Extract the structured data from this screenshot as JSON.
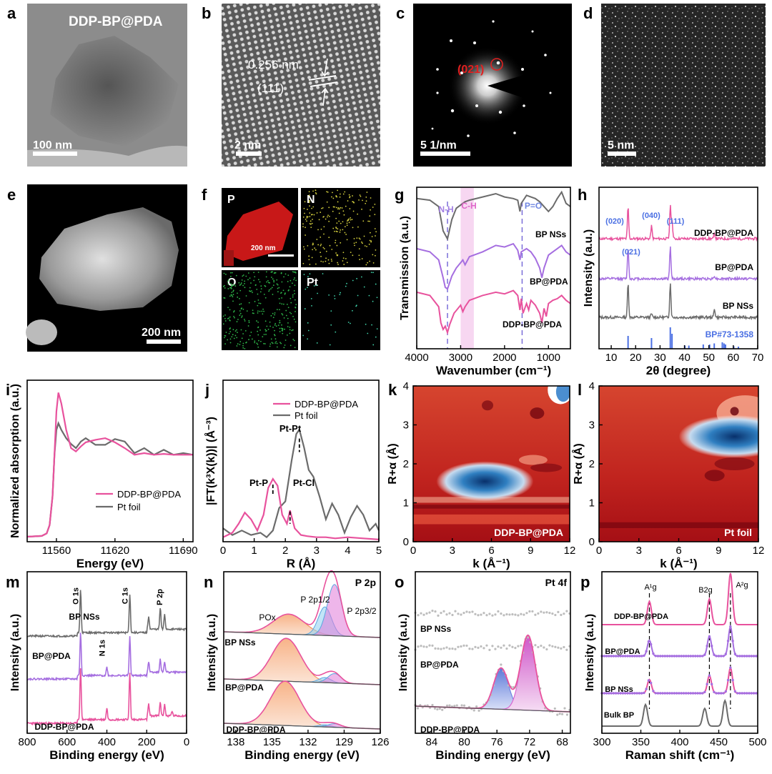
{
  "figure": {
    "panel_letters": [
      "a",
      "b",
      "c",
      "d",
      "e",
      "f",
      "g",
      "h",
      "i",
      "j",
      "k",
      "l",
      "m",
      "n",
      "o",
      "p"
    ]
  },
  "micro": {
    "a": {
      "title": "DDP-BP@PDA",
      "scale": "100 nm"
    },
    "b": {
      "spacing": "0.256 nm",
      "plane": "(111)",
      "scale": "2 nm"
    },
    "c": {
      "spot": "(021)",
      "scale": "5 1/nm"
    },
    "d": {
      "scale": "5 nm"
    },
    "e": {
      "scale": "200 nm"
    },
    "f": {
      "maps": [
        "P",
        "N",
        "O",
        "Pt"
      ],
      "scale": "200 nm"
    }
  },
  "colors": {
    "ddp": "#e8529d",
    "bp_pda": "#a56ee0",
    "bp_ns": "#6b6b6b",
    "pt_foil": "#6b6b6b",
    "ref": "#4a6fe3",
    "poxfill": "#f4a77a",
    "p2p12": "#8fd0f0",
    "p2p32": "#e07ad8",
    "pt_blue": "#6f86e0",
    "pt_pink": "#d867d0"
  },
  "chart_data": [
    {
      "id": "g",
      "type": "line",
      "xlabel": "Wavenumber (cm⁻¹)",
      "ylabel": "Transmission (a.u.)",
      "xlim": [
        4000,
        500
      ],
      "xticks": [
        4000,
        3000,
        2000,
        1000
      ],
      "annotations": [
        "N-H",
        "C-H",
        "P=O"
      ],
      "series": [
        {
          "name": "BP NSs",
          "x": [
            4000,
            3700,
            3500,
            3400,
            3300,
            3200,
            3100,
            2900,
            2800,
            2500,
            2200,
            2000,
            1800,
            1700,
            1650,
            1620,
            1500,
            1400,
            1300,
            1200,
            1100,
            1000,
            900,
            800,
            700,
            600,
            500
          ],
          "y": [
            0.93,
            0.92,
            0.88,
            0.73,
            0.68,
            0.8,
            0.87,
            0.91,
            0.92,
            0.94,
            0.96,
            0.94,
            0.93,
            0.92,
            0.85,
            0.9,
            0.95,
            0.94,
            0.93,
            0.91,
            0.88,
            0.85,
            0.88,
            0.93,
            0.97,
            0.9,
            0.88
          ]
        },
        {
          "name": "BP@PDA",
          "x": [
            4000,
            3700,
            3500,
            3400,
            3350,
            3300,
            3200,
            3100,
            2950,
            2900,
            2800,
            2500,
            2200,
            2000,
            1800,
            1700,
            1650,
            1620,
            1500,
            1400,
            1300,
            1200,
            1150,
            1100,
            1000,
            900,
            800,
            700,
            600,
            500
          ],
          "y": [
            0.62,
            0.6,
            0.55,
            0.44,
            0.38,
            0.37,
            0.45,
            0.5,
            0.55,
            0.52,
            0.57,
            0.6,
            0.64,
            0.63,
            0.65,
            0.61,
            0.55,
            0.6,
            0.62,
            0.6,
            0.56,
            0.5,
            0.44,
            0.5,
            0.58,
            0.6,
            0.62,
            0.64,
            0.6,
            0.58
          ]
        },
        {
          "name": "DDP-BP@PDA",
          "x": [
            4000,
            3700,
            3500,
            3450,
            3400,
            3350,
            3300,
            3250,
            3150,
            3000,
            2950,
            2900,
            2800,
            2500,
            2200,
            2000,
            1800,
            1700,
            1650,
            1620,
            1580,
            1500,
            1450,
            1400,
            1300,
            1200,
            1150,
            1100,
            1050,
            1000,
            900,
            800,
            700,
            600,
            500
          ],
          "y": [
            0.35,
            0.33,
            0.26,
            0.16,
            0.12,
            0.14,
            0.1,
            0.15,
            0.22,
            0.27,
            0.23,
            0.26,
            0.3,
            0.33,
            0.35,
            0.34,
            0.36,
            0.33,
            0.24,
            0.31,
            0.22,
            0.28,
            0.24,
            0.3,
            0.27,
            0.22,
            0.16,
            0.25,
            0.2,
            0.28,
            0.3,
            0.31,
            0.33,
            0.3,
            0.28
          ]
        }
      ]
    },
    {
      "id": "h",
      "type": "line",
      "xlabel": "2θ (degree)",
      "ylabel": "Intensity (a.u.)",
      "xlim": [
        5,
        70
      ],
      "xticks": [
        10,
        20,
        30,
        40,
        50,
        60,
        70
      ],
      "peak_labels": [
        "(020)",
        "(021)",
        "(040)",
        "(111)"
      ],
      "reference": {
        "name": "BP#73-1358",
        "x": [
          16.9,
          26.5,
          34.2,
          34.9,
          40.2,
          41.8,
          47.7,
          50.3,
          52.2,
          55.5,
          56.2,
          56.8,
          60.2,
          62.1
        ],
        "h": [
          0.6,
          0.5,
          1.0,
          0.7,
          0.15,
          0.15,
          0.2,
          0.2,
          0.25,
          0.3,
          0.25,
          0.2,
          0.12,
          0.1
        ]
      },
      "series": [
        {
          "name": "DDP-BP@PDA",
          "peaks": [
            [
              16.9,
              1.0
            ],
            [
              26.5,
              0.4
            ],
            [
              34.2,
              1.0
            ],
            [
              34.9,
              0.6
            ],
            [
              52.3,
              0.15
            ]
          ]
        },
        {
          "name": "BP@PDA",
          "peaks": [
            [
              16.9,
              1.0
            ],
            [
              34.2,
              1.0
            ],
            [
              52.3,
              0.1
            ]
          ]
        },
        {
          "name": "BP NSs",
          "peaks": [
            [
              16.9,
              1.0
            ],
            [
              26.5,
              0.1
            ],
            [
              34.2,
              1.0
            ],
            [
              52.3,
              0.25
            ]
          ]
        }
      ]
    },
    {
      "id": "i",
      "type": "line",
      "xlabel": "Energy (eV)",
      "ylabel": "Normalized absorption (a.u.)",
      "xlim": [
        11530,
        11700
      ],
      "xticks": [
        11560,
        11620,
        11690
      ],
      "legend": "bottom-center",
      "series": [
        {
          "name": "DDP-BP@PDA",
          "x": [
            11530,
            11545,
            11550,
            11553,
            11556,
            11558,
            11560,
            11562,
            11565,
            11570,
            11575,
            11580,
            11585,
            11590,
            11600,
            11610,
            11620,
            11630,
            11640,
            11650,
            11660,
            11670,
            11680,
            11690,
            11700
          ],
          "y": [
            0.01,
            0.02,
            0.05,
            0.15,
            0.5,
            1.0,
            1.52,
            1.75,
            1.62,
            1.3,
            1.08,
            1.04,
            1.1,
            1.15,
            1.18,
            1.2,
            1.15,
            1.08,
            1.0,
            1.02,
            1.0,
            1.01,
            1.0,
            1.0,
            1.0
          ]
        },
        {
          "name": "Pt foil",
          "x": [
            11530,
            11545,
            11550,
            11553,
            11556,
            11558,
            11560,
            11562,
            11565,
            11570,
            11575,
            11580,
            11585,
            11590,
            11600,
            11610,
            11620,
            11630,
            11640,
            11650,
            11660,
            11670,
            11680,
            11690,
            11700
          ],
          "y": [
            0.01,
            0.02,
            0.05,
            0.15,
            0.5,
            1.0,
            1.3,
            1.38,
            1.3,
            1.2,
            1.13,
            1.08,
            1.16,
            1.2,
            1.12,
            1.12,
            1.19,
            1.16,
            1.02,
            1.08,
            1.0,
            1.06,
            1.0,
            1.02,
            1.0
          ]
        }
      ]
    },
    {
      "id": "j",
      "type": "line",
      "xlabel": "R (Å)",
      "ylabel": "|FT(k³X(k))| (Å⁻³)",
      "xlim": [
        0,
        5
      ],
      "xticks": [
        0,
        1,
        2,
        3,
        4,
        5
      ],
      "legend": "top-right",
      "peak_labels": [
        "Pt-Pt",
        "Pt-P",
        "Pt-Cl"
      ],
      "series": [
        {
          "name": "DDP-BP@PDA",
          "x": [
            0,
            0.3,
            0.5,
            0.7,
            0.9,
            1.1,
            1.3,
            1.45,
            1.6,
            1.75,
            1.9,
            2.05,
            2.15,
            2.3,
            2.5,
            2.7,
            3.0,
            3.3,
            3.6,
            4.0,
            4.5,
            5.0
          ],
          "y": [
            0.2,
            0.4,
            0.8,
            1.3,
            1.0,
            0.5,
            1.2,
            2.4,
            2.8,
            2.5,
            1.2,
            0.8,
            1.4,
            0.6,
            0.3,
            0.25,
            0.2,
            0.2,
            0.15,
            0.2,
            0.15,
            0.1
          ]
        },
        {
          "name": "Pt foil",
          "x": [
            0,
            0.3,
            0.6,
            0.9,
            1.2,
            1.4,
            1.6,
            1.8,
            2.0,
            2.2,
            2.35,
            2.45,
            2.6,
            2.75,
            2.9,
            3.1,
            3.3,
            3.5,
            3.7,
            3.9,
            4.1,
            4.3,
            4.5,
            4.7,
            4.9,
            5.0
          ],
          "y": [
            0.6,
            0.3,
            0.5,
            0.3,
            0.4,
            0.2,
            0.5,
            1.5,
            1.8,
            3.6,
            4.8,
            5.0,
            4.2,
            3.2,
            2.9,
            2.0,
            1.0,
            1.7,
            1.2,
            0.4,
            1.1,
            1.6,
            1.2,
            0.5,
            0.8,
            0.5
          ]
        }
      ]
    },
    {
      "id": "k",
      "type": "heatmap",
      "xlabel": "k (Å⁻¹)",
      "ylabel": "R+α (Å)",
      "xlim": [
        0,
        12
      ],
      "ylim": [
        0,
        4
      ],
      "xticks": [
        0,
        3,
        6,
        9,
        12
      ],
      "yticks": [
        0,
        1,
        2,
        3,
        4
      ],
      "label": "DDP-BP@PDA",
      "max": {
        "k": 5.5,
        "r": 1.55
      }
    },
    {
      "id": "l",
      "type": "heatmap",
      "xlabel": "k (Å⁻¹)",
      "ylabel": "R+α (Å)",
      "xlim": [
        0,
        12
      ],
      "ylim": [
        0,
        4
      ],
      "xticks": [
        0,
        3,
        6,
        9,
        12
      ],
      "yticks": [
        0,
        1,
        2,
        3,
        4
      ],
      "label": "Pt foil",
      "max": {
        "k": 10.2,
        "r": 2.7
      }
    },
    {
      "id": "m",
      "type": "line",
      "xlabel": "Binding energy (eV)",
      "ylabel": "Intensity (a.u.)",
      "xlim": [
        800,
        0
      ],
      "xticks": [
        800,
        600,
        400,
        200,
        0
      ],
      "peak_labels": [
        "O 1s",
        "C 1s",
        "P 2p",
        "N 1s"
      ],
      "series": [
        {
          "name": "BP NSs",
          "peaks": [
            [
              532,
              1.0
            ],
            [
              285,
              0.9
            ],
            [
              190,
              0.3
            ],
            [
              132,
              0.5
            ],
            [
              110,
              0.35
            ]
          ]
        },
        {
          "name": "BP@PDA",
          "peaks": [
            [
              532,
              1.0
            ],
            [
              400,
              0.2
            ],
            [
              285,
              0.9
            ],
            [
              190,
              0.25
            ],
            [
              132,
              0.3
            ],
            [
              110,
              0.25
            ]
          ]
        },
        {
          "name": "DDP-BP@PDA",
          "peaks": [
            [
              532,
              1.1
            ],
            [
              400,
              0.25
            ],
            [
              285,
              1.0
            ],
            [
              190,
              0.25
            ],
            [
              132,
              0.3
            ],
            [
              110,
              0.25
            ],
            [
              73,
              0.1
            ]
          ]
        }
      ]
    },
    {
      "id": "n",
      "type": "line",
      "xlabel": "Binding energy (eV)",
      "ylabel": "Intensity (a.u.)",
      "xlim": [
        139,
        126
      ],
      "xticks": [
        138,
        135,
        132,
        129,
        126
      ],
      "title": "P 2p",
      "peak_labels": [
        "POx",
        "P 2p1/2",
        "P 2p3/2"
      ],
      "series": [
        {
          "name": "BP NSs",
          "components": [
            {
              "center": 133.6,
              "amp": 0.35,
              "w": 1.3
            },
            {
              "center": 130.6,
              "amp": 0.5,
              "w": 0.55
            },
            {
              "center": 129.8,
              "amp": 0.9,
              "w": 0.6
            }
          ]
        },
        {
          "name": "BP@PDA",
          "components": [
            {
              "center": 133.8,
              "amp": 1.0,
              "w": 1.2
            },
            {
              "center": 130.6,
              "amp": 0.12,
              "w": 0.5
            },
            {
              "center": 129.8,
              "amp": 0.22,
              "w": 0.55
            }
          ]
        },
        {
          "name": "DDP-BP@PDA",
          "components": [
            {
              "center": 133.9,
              "amp": 1.0,
              "w": 1.2
            },
            {
              "center": 130.6,
              "amp": 0.05,
              "w": 0.5
            },
            {
              "center": 129.8,
              "amp": 0.08,
              "w": 0.55
            }
          ]
        }
      ]
    },
    {
      "id": "o",
      "type": "scatter",
      "xlabel": "Binding energy (eV)",
      "ylabel": "Intensity (a.u.)",
      "xlim": [
        86,
        67
      ],
      "xticks": [
        84,
        80,
        76,
        72,
        68
      ],
      "title": "Pt 4f",
      "series": [
        {
          "name": "BP NSs",
          "peaks": []
        },
        {
          "name": "BP@PDA",
          "peaks": []
        },
        {
          "name": "DDP-BP@PDA",
          "peaks": [
            [
              75.5,
              0.55
            ],
            [
              72.2,
              1.0
            ]
          ]
        }
      ]
    },
    {
      "id": "p",
      "type": "line",
      "xlabel": "Raman shift (cm⁻¹)",
      "ylabel": "Intensity (a.u.)",
      "xlim": [
        300,
        500
      ],
      "xticks": [
        300,
        350,
        400,
        450,
        500
      ],
      "peak_labels": [
        "A¹g",
        "B2g",
        "A²g"
      ],
      "dashed_x": [
        361,
        438,
        465
      ],
      "series": [
        {
          "name": "DDP-BP@PDA",
          "peaks": [
            [
              361,
              0.45
            ],
            [
              438,
              0.5
            ],
            [
              465,
              1.0
            ]
          ]
        },
        {
          "name": "BP@PDA",
          "peaks": [
            [
              361,
              0.4
            ],
            [
              438,
              0.5
            ],
            [
              465,
              0.75
            ]
          ]
        },
        {
          "name": "BP NSs",
          "peaks": [
            [
              361,
              0.35
            ],
            [
              438,
              0.45
            ],
            [
              465,
              0.65
            ]
          ]
        },
        {
          "name": "Bulk BP",
          "peaks": [
            [
              356,
              0.55
            ],
            [
              432,
              0.45
            ],
            [
              458,
              0.65
            ]
          ]
        }
      ]
    }
  ]
}
